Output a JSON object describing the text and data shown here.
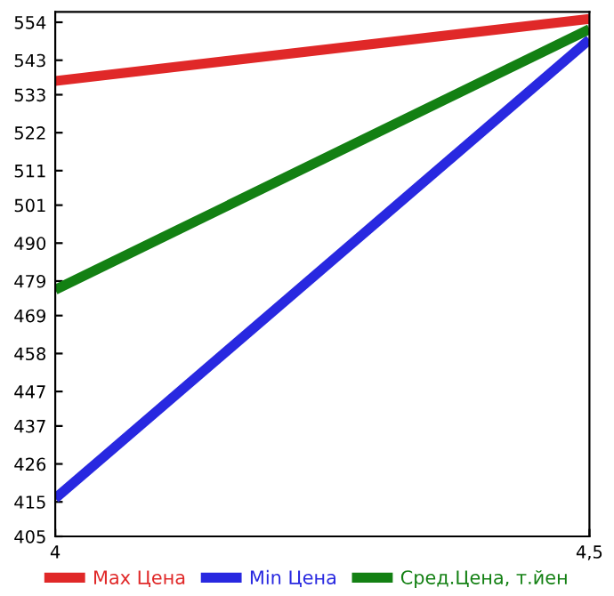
{
  "chart_data": {
    "type": "line",
    "x": [
      4,
      4.5
    ],
    "series": [
      {
        "name": "Max Цена",
        "color": "#e02828",
        "values": [
          537,
          555
        ]
      },
      {
        "name": "Min Цена",
        "color": "#2828e0",
        "values": [
          416,
          549
        ]
      },
      {
        "name": "Сред.Цена, т.йен",
        "color": "#138013",
        "values": [
          476.5,
          552
        ]
      }
    ],
    "xlim": [
      4,
      4.5
    ],
    "xticks": [
      4,
      {
        "value": 4.5,
        "label": "4,5"
      }
    ],
    "ylim": [
      405,
      557
    ],
    "yticks": [
      405,
      415,
      426,
      437,
      447,
      458,
      469,
      479,
      490,
      501,
      511,
      522,
      533,
      543,
      554
    ],
    "grid": false,
    "legend": "bottom",
    "marker": "none",
    "line_style": "solid"
  }
}
